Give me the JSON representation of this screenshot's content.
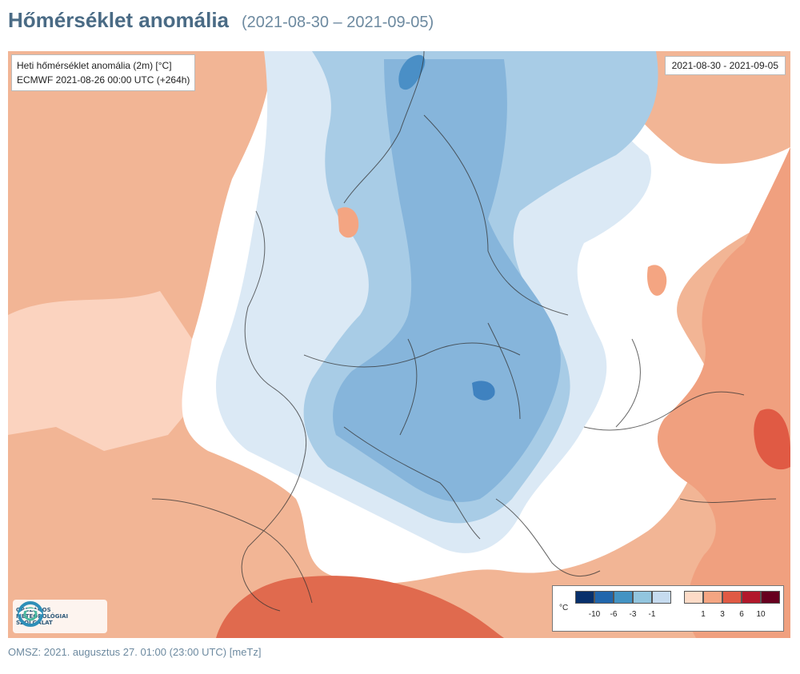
{
  "header": {
    "title": "Hőmérséklet anomália",
    "subtitle": "(2021-08-30 – 2021-09-05)"
  },
  "map": {
    "info_line1": "Heti hőmérséklet anomália (2m) [°C]",
    "info_line2": "ECMWF 2021-08-26 00:00 UTC (+264h)",
    "date_range": "2021-08-30 - 2021-09-05",
    "logo_lines": [
      "ORSZÁGOS",
      "METEOROLÓGIAI",
      "SZOLGÁLAT"
    ]
  },
  "legend": {
    "unit": "°C",
    "cold_colors": [
      "#08306b",
      "#2166ac",
      "#4393c3",
      "#92c5de",
      "#c6dbef"
    ],
    "warm_colors": [
      "#fddbc7",
      "#f4a582",
      "#e05a44",
      "#b2182b",
      "#67001f"
    ],
    "cold_ticks": [
      "-10",
      "-6",
      "-3",
      "-1"
    ],
    "warm_ticks": [
      "1",
      "3",
      "6",
      "10"
    ]
  },
  "footer": {
    "text": "OMSZ: 2021. augusztus 27. 01:00 (23:00  UTC)  [meTz]"
  }
}
